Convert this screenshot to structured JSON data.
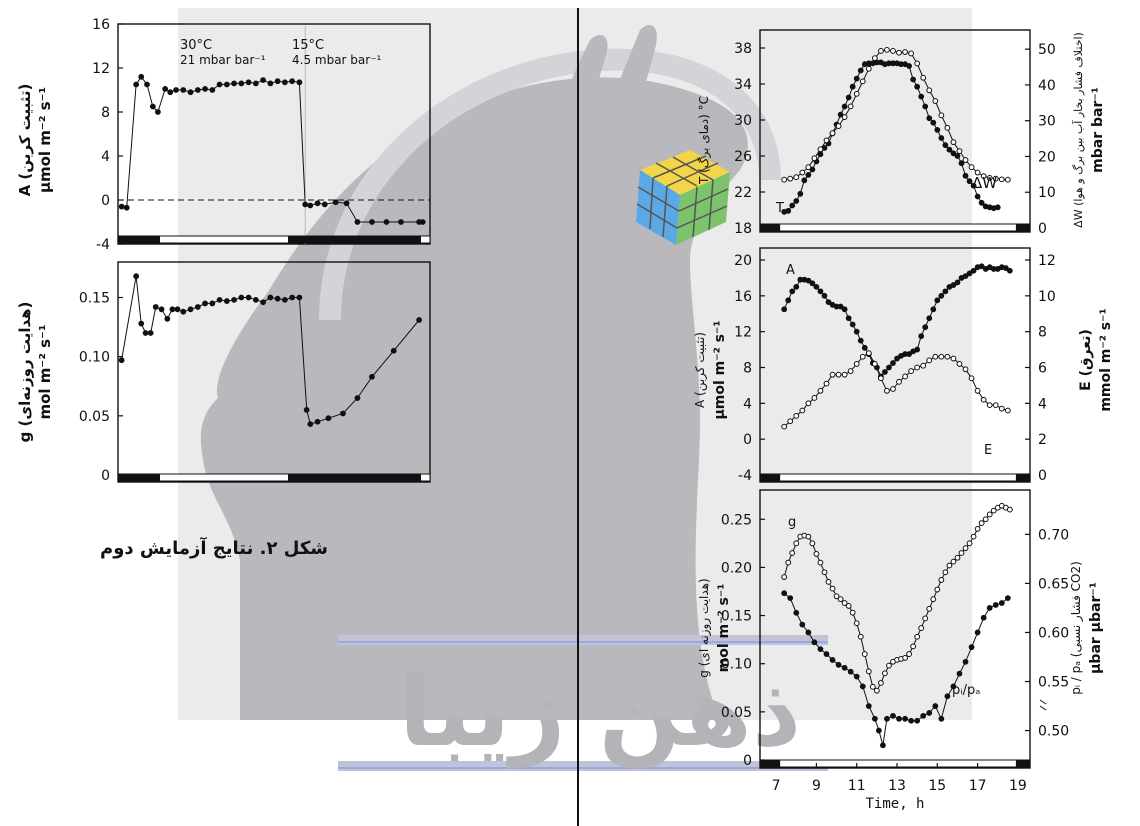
{
  "watermark_text": "ذهن زیبا",
  "caption": "شکل ۲. نتایج آزمایش دوم",
  "colors": {
    "watermark": "#b9b9bd",
    "panel_bg": "#ebebeb",
    "line": "#111111",
    "accent_line": "#9aa6e8"
  },
  "chart_data": [
    {
      "type": "line",
      "ylim": [
        -4,
        16
      ],
      "yticks": [
        "16",
        "12",
        "8",
        "4",
        "0",
        "-4"
      ],
      "ylabel": "A (تثبیت کربن)",
      "yunit": "μmol m⁻² s⁻¹",
      "annotations": [
        "30°C",
        "21 mbar bar⁻¹",
        "15°C",
        "4.5 mbar bar⁻¹"
      ],
      "series": [
        {
          "x": [
            0.5,
            1.2,
            2.5,
            3.2,
            4.0,
            4.8,
            5.5,
            6.5,
            7.2,
            8.0,
            9.0,
            10.0,
            11.0,
            12.0,
            13.0,
            14.0,
            15.0,
            16.0,
            17.0,
            18.0,
            19.0,
            20.0,
            21.0,
            22.0,
            23.0,
            24.0,
            25.0,
            25.8,
            26.5,
            27.5,
            28.5,
            30.0,
            31.5,
            33.0,
            35.0,
            37.0,
            39.0,
            41.5,
            42.0
          ],
          "y": [
            -0.6,
            -0.7,
            10.5,
            11.2,
            10.5,
            8.5,
            8.0,
            10.1,
            9.8,
            10.0,
            10.0,
            9.8,
            10.0,
            10.1,
            10.0,
            10.5,
            10.5,
            10.6,
            10.6,
            10.7,
            10.6,
            10.9,
            10.6,
            10.8,
            10.7,
            10.8,
            10.7,
            -0.4,
            -0.5,
            -0.3,
            -0.4,
            -0.2,
            -0.3,
            -2.0,
            -2.0,
            -2.0,
            -2.0,
            -2.0,
            -2.0
          ]
        }
      ]
    },
    {
      "type": "line",
      "ylim": [
        0,
        0.18
      ],
      "yticks": [
        "0.15",
        "0.10",
        "0.05",
        "0"
      ],
      "ylabel": "g (هدایت روزنه‌ای)",
      "yunit": "mol m⁻² s⁻¹",
      "series": [
        {
          "x": [
            0.5,
            2.5,
            3.2,
            3.8,
            4.5,
            5.2,
            6.0,
            6.8,
            7.5,
            8.2,
            9.0,
            10.0,
            11.0,
            12.0,
            13.0,
            14.0,
            15.0,
            16.0,
            17.0,
            18.0,
            19.0,
            20.0,
            21.0,
            22.0,
            23.0,
            24.0,
            25.0,
            26.0,
            26.5,
            27.5,
            29.0,
            31.0,
            33.0,
            35.0,
            38.0,
            41.5
          ],
          "y": [
            0.097,
            0.168,
            0.128,
            0.12,
            0.12,
            0.142,
            0.14,
            0.132,
            0.14,
            0.14,
            0.138,
            0.14,
            0.142,
            0.145,
            0.145,
            0.148,
            0.147,
            0.148,
            0.15,
            0.15,
            0.148,
            0.146,
            0.15,
            0.149,
            0.148,
            0.15,
            0.15,
            0.055,
            0.043,
            0.045,
            0.048,
            0.052,
            0.065,
            0.083,
            0.105,
            0.131
          ]
        }
      ]
    },
    {
      "type": "line",
      "ylim": [
        18,
        40
      ],
      "yticks": [
        "38",
        "34",
        "30",
        "26",
        "22",
        "18"
      ],
      "ylabel": "T (دمای برگ) °C",
      "y2lim": [
        0,
        52
      ],
      "y2ticks": [
        "50",
        "40",
        "30",
        "20",
        "10",
        "0"
      ],
      "y2label": "ΔW (اختلاف فشار بخار آب بین برگ و هوا)",
      "y2unit": "mbar bar⁻¹",
      "labels": [
        "T",
        "ΔW"
      ],
      "series": [
        {
          "name": "T",
          "y": [
            19.8,
            19.9,
            20.5,
            21.0,
            21.8,
            23.3,
            23.9,
            24.5,
            25.4,
            26.2,
            26.9,
            27.4,
            28.5,
            29.5,
            30.6,
            31.5,
            32.5,
            33.7,
            34.6,
            35.5,
            36.2,
            36.3,
            36.3,
            36.4,
            36.4,
            36.2,
            36.3,
            36.3,
            36.3,
            36.2,
            36.2,
            36.0,
            34.5,
            33.7,
            32.6,
            31.5,
            30.2,
            29.7,
            28.9,
            28.0,
            27.2,
            26.7,
            26.3,
            26.0,
            25.2,
            23.8,
            23.2,
            22.7,
            21.5,
            20.8,
            20.4,
            20.3,
            20.2,
            20.3
          ],
          "x": [
            7.4,
            7.6,
            7.8,
            8.0,
            8.2,
            8.4,
            8.6,
            8.8,
            9.0,
            9.2,
            9.4,
            9.6,
            9.8,
            10.0,
            10.2,
            10.4,
            10.6,
            10.8,
            11.0,
            11.2,
            11.4,
            11.6,
            11.8,
            12.0,
            12.2,
            12.4,
            12.6,
            12.8,
            13.0,
            13.2,
            13.4,
            13.6,
            13.8,
            14.0,
            14.2,
            14.4,
            14.6,
            14.8,
            15.0,
            15.2,
            15.4,
            15.6,
            15.8,
            16.0,
            16.2,
            16.4,
            16.6,
            16.8,
            17.0,
            17.2,
            17.4,
            17.6,
            17.8,
            18.0
          ]
        },
        {
          "name": "ΔW",
          "x": [
            7.4,
            7.7,
            8.0,
            8.3,
            8.6,
            8.9,
            9.2,
            9.5,
            9.8,
            10.1,
            10.4,
            10.7,
            11.0,
            11.3,
            11.6,
            11.9,
            12.2,
            12.5,
            12.8,
            13.1,
            13.4,
            13.7,
            14.0,
            14.3,
            14.6,
            14.9,
            15.2,
            15.5,
            15.8,
            16.1,
            16.4,
            16.7,
            17.0,
            17.3,
            17.6,
            17.9,
            18.2,
            18.5
          ],
          "y": [
            13.5,
            13.8,
            14.2,
            15.5,
            17.0,
            19.5,
            22.0,
            24.5,
            26.5,
            28.5,
            31.0,
            34.0,
            37.5,
            41.0,
            44.5,
            47.5,
            49.5,
            49.8,
            49.5,
            49.0,
            49.2,
            48.8,
            46.0,
            42.0,
            38.5,
            35.5,
            31.5,
            28.0,
            24.0,
            21.5,
            19.0,
            17.0,
            15.5,
            14.5,
            14.0,
            13.8,
            13.6,
            13.5
          ]
        }
      ]
    },
    {
      "type": "line",
      "ylim": [
        -4,
        20
      ],
      "yticks": [
        "20",
        "16",
        "12",
        "8",
        "4",
        "0",
        "-4"
      ],
      "ylabel": "A (تثبیت کربن)",
      "yunit": "μmol m⁻² s⁻¹",
      "y2lim": [
        0,
        12
      ],
      "y2ticks": [
        "12",
        "10",
        "8",
        "6",
        "4",
        "2",
        "0"
      ],
      "y2label": "E (تعرق)",
      "y2unit": "mmol m⁻² s⁻¹",
      "labels": [
        "A",
        "E"
      ],
      "series": [
        {
          "name": "A",
          "x": [
            7.4,
            7.6,
            7.8,
            8.0,
            8.2,
            8.4,
            8.6,
            8.8,
            9.0,
            9.2,
            9.4,
            9.6,
            9.8,
            10.0,
            10.2,
            10.4,
            10.6,
            10.8,
            11.0,
            11.2,
            11.4,
            11.6,
            11.8,
            12.0,
            12.2,
            12.4,
            12.6,
            12.8,
            13.0,
            13.2,
            13.4,
            13.6,
            13.8,
            14.0,
            14.2,
            14.4,
            14.6,
            14.8,
            15.0,
            15.2,
            15.4,
            15.6,
            15.8,
            16.0,
            16.2,
            16.4,
            16.6,
            16.8,
            17.0,
            17.2,
            17.4,
            17.6,
            17.8,
            18.0,
            18.2,
            18.4,
            18.6
          ],
          "y": [
            14.5,
            15.5,
            16.5,
            17.0,
            17.8,
            17.8,
            17.7,
            17.4,
            17.0,
            16.5,
            16.0,
            15.3,
            15.0,
            14.8,
            14.8,
            14.5,
            13.5,
            12.8,
            12.0,
            11.0,
            10.2,
            9.5,
            8.5,
            8.0,
            7.0,
            7.5,
            8.0,
            8.5,
            9.0,
            9.3,
            9.5,
            9.5,
            9.8,
            10.0,
            11.5,
            12.5,
            13.5,
            14.5,
            15.5,
            16.0,
            16.5,
            17.0,
            17.2,
            17.5,
            18.0,
            18.2,
            18.5,
            18.8,
            19.2,
            19.3,
            19.0,
            19.2,
            19.0,
            19.0,
            19.2,
            19.1,
            18.8
          ]
        },
        {
          "name": "E",
          "x": [
            7.4,
            7.7,
            8.0,
            8.3,
            8.6,
            8.9,
            9.2,
            9.5,
            9.8,
            10.1,
            10.4,
            10.7,
            11.0,
            11.3,
            11.6,
            11.9,
            12.2,
            12.5,
            12.8,
            13.1,
            13.4,
            13.7,
            14.0,
            14.3,
            14.6,
            14.9,
            15.2,
            15.5,
            15.8,
            16.1,
            16.4,
            16.7,
            17.0,
            17.3,
            17.6,
            17.9,
            18.2,
            18.5
          ],
          "y": [
            2.7,
            3.0,
            3.3,
            3.6,
            4.0,
            4.3,
            4.7,
            5.1,
            5.6,
            5.6,
            5.6,
            5.8,
            6.2,
            6.6,
            6.8,
            6.2,
            5.4,
            4.7,
            4.8,
            5.2,
            5.5,
            5.8,
            6.0,
            6.1,
            6.4,
            6.6,
            6.6,
            6.6,
            6.5,
            6.2,
            5.9,
            5.4,
            4.7,
            4.2,
            3.9,
            3.9,
            3.7,
            3.6
          ]
        }
      ]
    },
    {
      "type": "line",
      "xlabel": "Time, h",
      "xlim": [
        6.2,
        19.6
      ],
      "xticks": [
        "7",
        "9",
        "11",
        "13",
        "15",
        "17",
        "19"
      ],
      "ylim": [
        0,
        0.27
      ],
      "yticks": [
        "0.25",
        "0.20",
        "0.15",
        "0.10",
        "0.05",
        "0"
      ],
      "ylabel": "g (هدایت روزنه ای)",
      "yunit": "mol m⁻² s⁻¹",
      "y2lim": [
        0.47,
        0.735
      ],
      "y2ticks": [
        "0.70",
        "0.65",
        "0.60",
        "0.55",
        "0.50"
      ],
      "y2label": "pᵢ / pₐ (فشار نسبی CO2)",
      "y2unit": "μbar μbar⁻¹",
      "labels": [
        "g",
        "pᵢ/pₐ"
      ],
      "series": [
        {
          "name": "g",
          "x": [
            7.4,
            7.6,
            7.8,
            8.0,
            8.2,
            8.4,
            8.6,
            8.8,
            9.0,
            9.2,
            9.4,
            9.6,
            9.8,
            10.0,
            10.2,
            10.4,
            10.6,
            10.8,
            11.0,
            11.2,
            11.4,
            11.6,
            11.8,
            12.0,
            12.2,
            12.4,
            12.6,
            12.8,
            13.0,
            13.2,
            13.4,
            13.6,
            13.8,
            14.0,
            14.2,
            14.4,
            14.6,
            14.8,
            15.0,
            15.2,
            15.4,
            15.6,
            15.8,
            16.0,
            16.2,
            16.4,
            16.6,
            16.8,
            17.0,
            17.2,
            17.4,
            17.6,
            17.8,
            18.0,
            18.2,
            18.4,
            18.6
          ],
          "y": [
            0.19,
            0.205,
            0.215,
            0.225,
            0.232,
            0.233,
            0.232,
            0.225,
            0.214,
            0.205,
            0.195,
            0.185,
            0.178,
            0.17,
            0.167,
            0.163,
            0.16,
            0.153,
            0.142,
            0.128,
            0.11,
            0.092,
            0.076,
            0.072,
            0.08,
            0.09,
            0.098,
            0.102,
            0.104,
            0.105,
            0.106,
            0.11,
            0.118,
            0.128,
            0.137,
            0.147,
            0.157,
            0.167,
            0.177,
            0.187,
            0.195,
            0.202,
            0.206,
            0.21,
            0.215,
            0.22,
            0.225,
            0.232,
            0.24,
            0.246,
            0.25,
            0.255,
            0.259,
            0.262,
            0.264,
            0.262,
            0.26
          ]
        },
        {
          "name": "pᵢ/pₐ",
          "x": [
            7.4,
            7.7,
            8.0,
            8.3,
            8.6,
            8.9,
            9.2,
            9.5,
            9.8,
            10.1,
            10.4,
            10.7,
            11.0,
            11.3,
            11.6,
            11.9,
            12.1,
            12.3,
            12.5,
            12.8,
            13.1,
            13.4,
            13.7,
            14.0,
            14.3,
            14.6,
            14.9,
            15.2,
            15.5,
            15.8,
            16.1,
            16.4,
            16.7,
            17.0,
            17.3,
            17.6,
            17.9,
            18.2,
            18.5
          ],
          "y": [
            0.64,
            0.635,
            0.62,
            0.608,
            0.6,
            0.59,
            0.583,
            0.578,
            0.572,
            0.567,
            0.564,
            0.56,
            0.555,
            0.545,
            0.525,
            0.512,
            0.5,
            0.485,
            0.512,
            0.515,
            0.512,
            0.512,
            0.51,
            0.51,
            0.515,
            0.518,
            0.525,
            0.512,
            0.535,
            0.545,
            0.558,
            0.57,
            0.585,
            0.6,
            0.615,
            0.625,
            0.628,
            0.63,
            0.635
          ]
        }
      ]
    }
  ]
}
